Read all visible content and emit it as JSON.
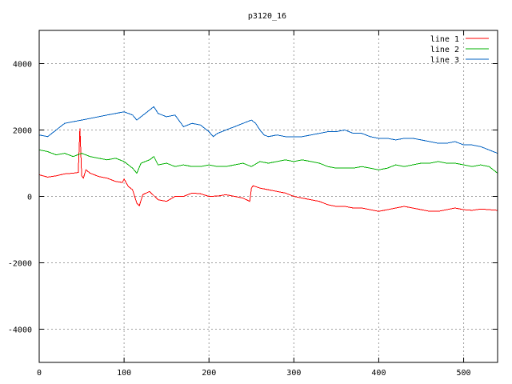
{
  "chart_data": {
    "type": "line",
    "title": "p3120_16",
    "xlabel": "",
    "ylabel": "",
    "xlim": [
      0,
      540
    ],
    "ylim": [
      -5000,
      5000
    ],
    "xticks": [
      0,
      100,
      200,
      300,
      400,
      500
    ],
    "yticks": [
      -4000,
      -2000,
      0,
      2000,
      4000
    ],
    "grid": true,
    "legend": "top-right",
    "series": [
      {
        "name": "line 1",
        "color": "#ff0000",
        "x": [
          0,
          10,
          20,
          30,
          40,
          46,
          48,
          50,
          52,
          55,
          60,
          70,
          80,
          90,
          98,
          100,
          105,
          110,
          115,
          118,
          122,
          130,
          140,
          150,
          160,
          170,
          180,
          190,
          200,
          210,
          220,
          230,
          240,
          248,
          250,
          252,
          260,
          270,
          280,
          290,
          300,
          310,
          320,
          330,
          340,
          350,
          360,
          370,
          380,
          390,
          400,
          410,
          420,
          430,
          440,
          450,
          460,
          470,
          480,
          490,
          500,
          510,
          520,
          530,
          540
        ],
        "y": [
          650,
          580,
          620,
          680,
          700,
          720,
          2050,
          620,
          550,
          800,
          700,
          600,
          550,
          450,
          420,
          520,
          300,
          200,
          -200,
          -280,
          50,
          150,
          -100,
          -150,
          0,
          0,
          100,
          80,
          0,
          10,
          50,
          0,
          -50,
          -150,
          250,
          320,
          250,
          200,
          150,
          100,
          0,
          -50,
          -100,
          -150,
          -250,
          -300,
          -300,
          -350,
          -350,
          -400,
          -450,
          -400,
          -350,
          -300,
          -350,
          -400,
          -450,
          -450,
          -400,
          -350,
          -400,
          -420,
          -380,
          -400,
          -420
        ]
      },
      {
        "name": "line 2",
        "color": "#00b000",
        "x": [
          0,
          10,
          20,
          30,
          40,
          50,
          60,
          70,
          80,
          90,
          100,
          110,
          115,
          120,
          125,
          130,
          135,
          140,
          150,
          160,
          170,
          180,
          190,
          200,
          210,
          220,
          230,
          240,
          250,
          260,
          270,
          280,
          290,
          300,
          310,
          320,
          330,
          340,
          350,
          360,
          370,
          380,
          390,
          400,
          410,
          420,
          430,
          440,
          450,
          460,
          470,
          480,
          490,
          500,
          510,
          520,
          530,
          540
        ],
        "y": [
          1400,
          1350,
          1250,
          1300,
          1200,
          1300,
          1200,
          1150,
          1100,
          1150,
          1050,
          850,
          700,
          1000,
          1050,
          1100,
          1200,
          950,
          1000,
          900,
          950,
          900,
          900,
          950,
          900,
          900,
          950,
          1000,
          900,
          1050,
          1000,
          1050,
          1100,
          1050,
          1100,
          1050,
          1000,
          900,
          850,
          850,
          850,
          900,
          850,
          800,
          850,
          950,
          900,
          950,
          1000,
          1000,
          1050,
          1000,
          1000,
          950,
          900,
          950,
          900,
          700
        ]
      },
      {
        "name": "line 3",
        "color": "#0060c0",
        "x": [
          0,
          10,
          20,
          30,
          40,
          50,
          60,
          70,
          80,
          90,
          100,
          110,
          115,
          120,
          130,
          135,
          140,
          150,
          160,
          170,
          180,
          190,
          200,
          205,
          210,
          220,
          230,
          240,
          250,
          255,
          260,
          265,
          270,
          280,
          290,
          300,
          310,
          320,
          330,
          340,
          350,
          360,
          370,
          380,
          390,
          400,
          410,
          420,
          430,
          440,
          450,
          460,
          470,
          480,
          490,
          500,
          510,
          520,
          530,
          540
        ],
        "y": [
          1850,
          1800,
          2000,
          2200,
          2250,
          2300,
          2350,
          2400,
          2450,
          2500,
          2550,
          2450,
          2300,
          2400,
          2600,
          2700,
          2500,
          2400,
          2450,
          2100,
          2200,
          2150,
          1950,
          1800,
          1900,
          2000,
          2100,
          2200,
          2300,
          2200,
          2000,
          1850,
          1800,
          1850,
          1800,
          1800,
          1800,
          1850,
          1900,
          1950,
          1950,
          2000,
          1900,
          1900,
          1800,
          1750,
          1750,
          1700,
          1750,
          1750,
          1700,
          1650,
          1600,
          1600,
          1650,
          1550,
          1550,
          1500,
          1400,
          1300
        ]
      }
    ]
  }
}
